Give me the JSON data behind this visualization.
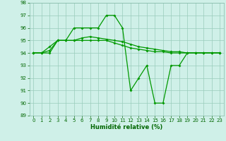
{
  "xlabel": "Humidité relative (%)",
  "xlim": [
    -0.5,
    23.5
  ],
  "ylim": [
    89,
    98
  ],
  "yticks": [
    89,
    90,
    91,
    92,
    93,
    94,
    95,
    96,
    97,
    98
  ],
  "xticks": [
    0,
    1,
    2,
    3,
    4,
    5,
    6,
    7,
    8,
    9,
    10,
    11,
    12,
    13,
    14,
    15,
    16,
    17,
    18,
    19,
    20,
    21,
    22,
    23
  ],
  "bg_color": "#cff0e8",
  "grid_color": "#99ccbb",
  "line_color": "#009900",
  "s1": [
    94,
    94,
    94,
    95,
    95,
    96,
    96,
    96,
    96,
    97,
    97,
    96,
    91,
    92,
    93,
    90,
    90,
    93,
    93,
    94,
    94,
    94,
    94,
    94
  ],
  "s2": [
    94,
    94,
    94.5,
    95,
    95,
    95,
    95.2,
    95.3,
    95.2,
    95.1,
    95,
    94.9,
    94.7,
    94.5,
    94.4,
    94.3,
    94.2,
    94.1,
    94.1,
    94.0,
    94.0,
    94.0,
    94.0,
    94.0
  ],
  "s3": [
    94,
    94,
    94.2,
    95,
    95,
    95,
    95,
    95,
    95,
    95,
    94.8,
    94.6,
    94.4,
    94.3,
    94.2,
    94.1,
    94.1,
    94.0,
    94.0,
    94.0,
    94.0,
    94.0,
    94.0,
    94.0
  ]
}
